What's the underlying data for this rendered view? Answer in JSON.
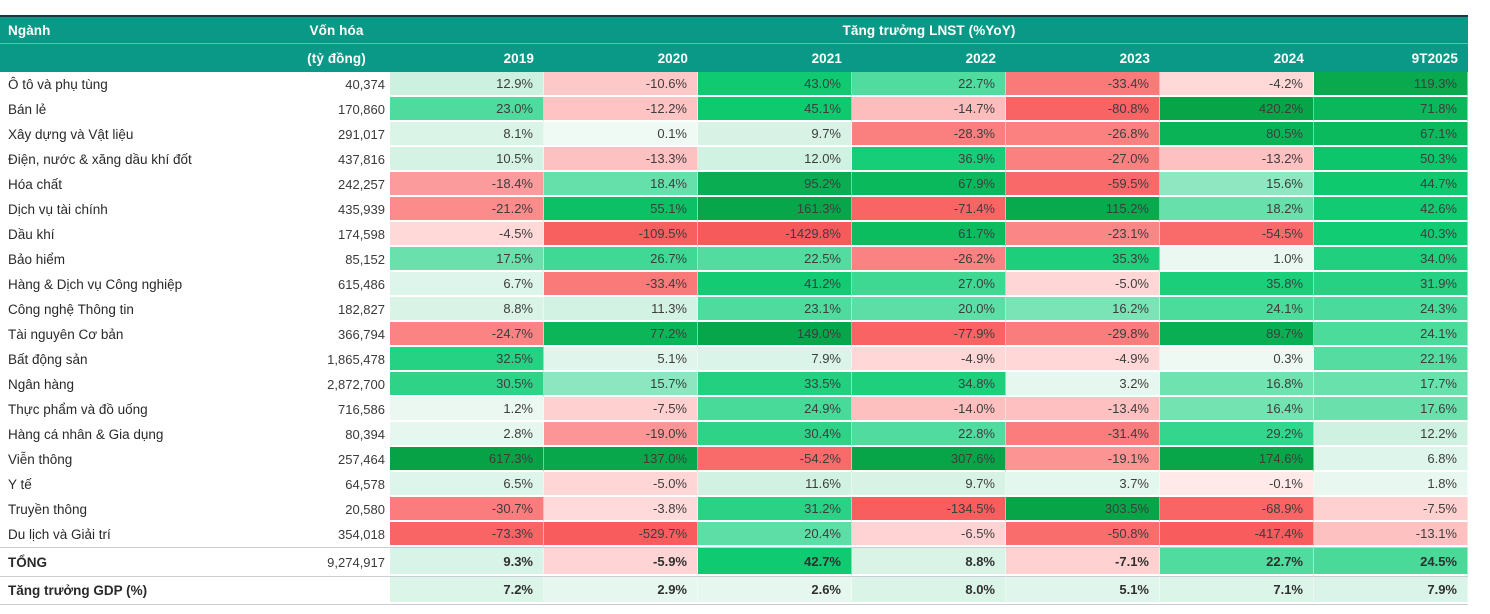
{
  "chart_data": {
    "type": "heatmap",
    "title": "Tăng trưởng LNST (%YoY)",
    "value_unit": "%",
    "header": {
      "sector": "Ngành",
      "market_cap_line1": "Vốn hóa",
      "market_cap_line2": "(tỷ đồng)",
      "growth_title": "Tăng trưởng LNST (%YoY)",
      "years": [
        "2019",
        "2020",
        "2021",
        "2022",
        "2023",
        "2024",
        "9T2025"
      ]
    },
    "rows": [
      {
        "name": "Ô tô và phụ tùng",
        "cap": "40,374",
        "values": [
          12.9,
          -10.6,
          43.0,
          22.7,
          -33.4,
          -4.2,
          119.3
        ]
      },
      {
        "name": "Bán lẻ",
        "cap": "170,860",
        "values": [
          23.0,
          -12.2,
          45.1,
          -14.7,
          -80.8,
          420.2,
          71.8
        ]
      },
      {
        "name": "Xây dựng và Vật liệu",
        "cap": "291,017",
        "values": [
          8.1,
          0.1,
          9.7,
          -28.3,
          -26.8,
          80.5,
          67.1
        ]
      },
      {
        "name": "Điện, nước & xăng dầu khí đốt",
        "cap": "437,816",
        "values": [
          10.5,
          -13.3,
          12.0,
          36.9,
          -27.0,
          -13.2,
          50.3
        ]
      },
      {
        "name": "Hóa chất",
        "cap": "242,257",
        "values": [
          -18.4,
          18.4,
          95.2,
          67.9,
          -59.5,
          15.6,
          44.7
        ]
      },
      {
        "name": "Dịch vụ tài chính",
        "cap": "435,939",
        "values": [
          -21.2,
          55.1,
          161.3,
          -71.4,
          115.2,
          18.2,
          42.6
        ]
      },
      {
        "name": "Dầu khí",
        "cap": "174,598",
        "values": [
          -4.5,
          -109.5,
          -1429.8,
          61.7,
          -23.1,
          -54.5,
          40.3
        ]
      },
      {
        "name": "Bảo hiểm",
        "cap": "85,152",
        "values": [
          17.5,
          26.7,
          22.5,
          -26.2,
          35.3,
          1.0,
          34.0
        ]
      },
      {
        "name": "Hàng & Dịch vụ Công nghiệp",
        "cap": "615,486",
        "values": [
          6.7,
          -33.4,
          41.2,
          27.0,
          -5.0,
          35.8,
          31.9
        ]
      },
      {
        "name": "Công nghệ Thông tin",
        "cap": "182,827",
        "values": [
          8.8,
          11.3,
          23.1,
          20.0,
          16.2,
          24.1,
          24.3
        ]
      },
      {
        "name": "Tài nguyên Cơ bản",
        "cap": "366,794",
        "values": [
          -24.7,
          77.2,
          149.0,
          -77.9,
          -29.8,
          89.7,
          24.1
        ]
      },
      {
        "name": "Bất động sản",
        "cap": "1,865,478",
        "values": [
          32.5,
          5.1,
          7.9,
          -4.9,
          -4.9,
          0.3,
          22.1
        ]
      },
      {
        "name": "Ngân hàng",
        "cap": "2,872,700",
        "values": [
          30.5,
          15.7,
          33.5,
          34.8,
          3.2,
          16.8,
          17.7
        ]
      },
      {
        "name": "Thực phẩm và đồ uống",
        "cap": "716,586",
        "values": [
          1.2,
          -7.5,
          24.9,
          -14.0,
          -13.4,
          16.4,
          17.6
        ]
      },
      {
        "name": "Hàng cá nhân & Gia dụng",
        "cap": "80,394",
        "values": [
          2.8,
          -19.0,
          30.4,
          22.8,
          -31.4,
          29.2,
          12.2
        ]
      },
      {
        "name": "Viễn thông",
        "cap": "257,464",
        "values": [
          617.3,
          137.0,
          -54.2,
          307.6,
          -19.1,
          174.6,
          6.8
        ]
      },
      {
        "name": "Y tế",
        "cap": "64,578",
        "values": [
          6.5,
          -5.0,
          11.6,
          9.7,
          3.7,
          -0.1,
          1.8
        ]
      },
      {
        "name": "Truyền thông",
        "cap": "20,580",
        "values": [
          -30.7,
          -3.8,
          31.2,
          -134.5,
          303.5,
          -68.9,
          -7.5
        ]
      },
      {
        "name": "Du lịch và Giải trí",
        "cap": "354,018",
        "values": [
          -73.3,
          -529.7,
          20.4,
          -6.5,
          -50.8,
          -417.4,
          -13.1
        ]
      }
    ],
    "total_row": {
      "name": "TỔNG",
      "cap": "9,274,917",
      "values": [
        9.3,
        -5.9,
        42.7,
        8.8,
        -7.1,
        22.7,
        24.5
      ]
    },
    "gdp_row": {
      "name": "Tăng trưởng GDP (%)",
      "values": [
        7.2,
        2.9,
        2.6,
        8.0,
        5.1,
        7.1,
        7.9
      ]
    },
    "colors": {
      "header_bg": "#0a9887",
      "header_text": "#ffffff",
      "header_top_border": "#123c41",
      "body_text": "#3d3d3d",
      "divider": "#c9ced2"
    },
    "heatmap_scale": {
      "positive": [
        [
          0,
          "#f0faf5"
        ],
        [
          1,
          "#eaf8f1"
        ],
        [
          5,
          "#e0f6ec"
        ],
        [
          10,
          "#d7f3e6"
        ],
        [
          14,
          "#c9f0de"
        ],
        [
          16.5,
          "#6fe2b0"
        ],
        [
          21,
          "#59dda4"
        ],
        [
          26,
          "#42d996"
        ],
        [
          32,
          "#27d183"
        ],
        [
          38,
          "#14cd75"
        ],
        [
          46,
          "#0ec86e"
        ],
        [
          56,
          "#0cc064"
        ],
        [
          72,
          "#0bb75a"
        ],
        [
          92,
          "#0aae52"
        ],
        [
          125,
          "#09a84c"
        ],
        [
          170,
          "#08a549"
        ],
        [
          700,
          "#07a246"
        ]
      ],
      "negative": [
        [
          0,
          "#ffe9e9"
        ],
        [
          4,
          "#ffd9d9"
        ],
        [
          9,
          "#ffcccc"
        ],
        [
          15,
          "#febcbc"
        ],
        [
          19.5,
          "#fc9090"
        ],
        [
          24,
          "#fb8484"
        ],
        [
          32,
          "#fa7b7b"
        ],
        [
          48,
          "#f96e6e"
        ],
        [
          65,
          "#f96666"
        ],
        [
          95,
          "#f86060"
        ],
        [
          150,
          "#f85d5d"
        ],
        [
          1500,
          "#f75a5a"
        ]
      ]
    }
  }
}
